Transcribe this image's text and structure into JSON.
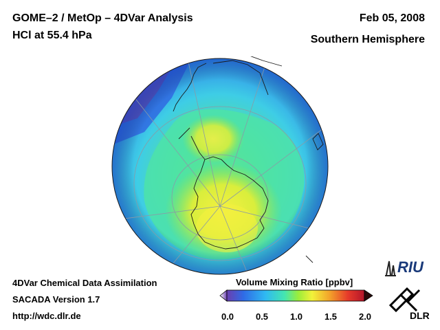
{
  "header": {
    "title_line1": "GOME–2 / MetOp – 4DVar Analysis",
    "title_line2": "HCl at 55.4 hPa",
    "date": "Feb 05, 2008",
    "hemisphere": "Southern Hemisphere"
  },
  "footer": {
    "line1": "4DVar Chemical Data Assimilation",
    "line2": "SACADA Version 1.7",
    "line3": "http://wdc.dlr.de"
  },
  "colorbar": {
    "title": "Volume Mixing Ratio [ppbv]",
    "ticks": [
      "0.0",
      "0.5",
      "1.0",
      "1.5",
      "2.0"
    ],
    "range": [
      0.0,
      2.0
    ],
    "colors": [
      "#6a3fb0",
      "#2f6be6",
      "#2fb9f2",
      "#44e6b0",
      "#9ced3a",
      "#f2f23a",
      "#f2a12a",
      "#e63a2a",
      "#b3152a"
    ]
  },
  "logos": {
    "riu": "RIU",
    "dlr": "DLR"
  },
  "map": {
    "projection": "orthographic polar",
    "pole": "South Pole"
  }
}
